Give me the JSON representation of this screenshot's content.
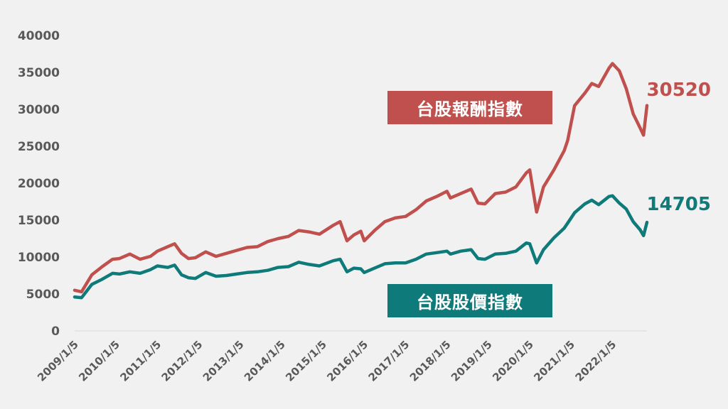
{
  "chart_data": {
    "type": "line",
    "ylim": [
      0,
      40000
    ],
    "yticks": [
      "0",
      "5000",
      "10000",
      "15000",
      "20000",
      "25000",
      "30000",
      "35000",
      "40000"
    ],
    "xticks": [
      "2009/1/5",
      "2010/1/5",
      "2011/1/5",
      "2012/1/5",
      "2013/1/5",
      "2014/1/5",
      "2015/1/5",
      "2016/1/5",
      "2017/1/5",
      "2018/1/5",
      "2019/1/5",
      "2020/1/5",
      "2021/1/5",
      "2022/1/5"
    ],
    "x": [
      "2009-01",
      "2009-03",
      "2009-06",
      "2009-09",
      "2009-12",
      "2010-02",
      "2010-05",
      "2010-08",
      "2010-11",
      "2011-01",
      "2011-04",
      "2011-06",
      "2011-08",
      "2011-10",
      "2011-12",
      "2012-03",
      "2012-06",
      "2012-09",
      "2012-12",
      "2013-03",
      "2013-06",
      "2013-09",
      "2013-12",
      "2014-03",
      "2014-06",
      "2014-09",
      "2014-12",
      "2015-04",
      "2015-06",
      "2015-08",
      "2015-10",
      "2015-12",
      "2016-01",
      "2016-04",
      "2016-07",
      "2016-10",
      "2017-01",
      "2017-04",
      "2017-07",
      "2017-10",
      "2018-01",
      "2018-02",
      "2018-05",
      "2018-08",
      "2018-10",
      "2018-12",
      "2019-03",
      "2019-06",
      "2019-09",
      "2019-12",
      "2020-01",
      "2020-03",
      "2020-05",
      "2020-08",
      "2020-11",
      "2020-12",
      "2021-02",
      "2021-05",
      "2021-07",
      "2021-09",
      "2021-12",
      "2022-01",
      "2022-03",
      "2022-05",
      "2022-07",
      "2022-09",
      "2022-10",
      "2022-11"
    ],
    "series": [
      {
        "name": "台股報酬指數",
        "color": "#c0504d",
        "end_label": "30520",
        "values": [
          5500,
          5300,
          7600,
          8700,
          9700,
          9800,
          10400,
          9700,
          10100,
          10800,
          11400,
          11800,
          10500,
          9800,
          9900,
          10700,
          10100,
          10500,
          10900,
          11300,
          11400,
          12100,
          12500,
          12800,
          13600,
          13400,
          13100,
          14300,
          14800,
          12200,
          13000,
          13500,
          12200,
          13600,
          14800,
          15300,
          15500,
          16400,
          17600,
          18200,
          18900,
          18000,
          18600,
          19200,
          17300,
          17200,
          18600,
          18800,
          19500,
          21400,
          21800,
          16100,
          19500,
          21800,
          24400,
          25800,
          30500,
          32200,
          33500,
          33100,
          35600,
          36200,
          35200,
          32800,
          29400,
          27500,
          26500,
          30520
        ]
      },
      {
        "name": "台股股價指數",
        "color": "#0e7a7a",
        "end_label": "14705",
        "values": [
          4600,
          4500,
          6300,
          7000,
          7800,
          7700,
          8000,
          7800,
          8300,
          8800,
          8600,
          8900,
          7600,
          7200,
          7100,
          7900,
          7400,
          7500,
          7700,
          7900,
          8000,
          8200,
          8600,
          8700,
          9300,
          9000,
          8800,
          9500,
          9700,
          8000,
          8500,
          8400,
          7900,
          8500,
          9100,
          9200,
          9200,
          9700,
          10400,
          10600,
          10800,
          10400,
          10800,
          11000,
          9800,
          9700,
          10400,
          10500,
          10800,
          11900,
          11800,
          9200,
          11000,
          12600,
          13900,
          14600,
          16000,
          17200,
          17700,
          17100,
          18200,
          18300,
          17300,
          16500,
          14800,
          13700,
          12900,
          14705
        ]
      }
    ]
  }
}
